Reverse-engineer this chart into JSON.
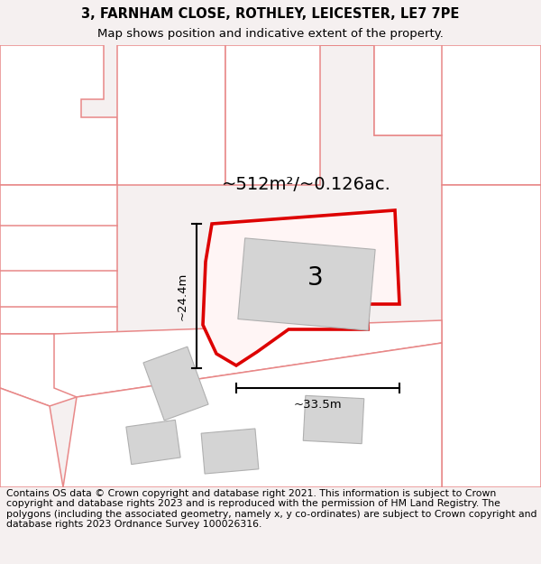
{
  "title_line1": "3, FARNHAM CLOSE, ROTHLEY, LEICESTER, LE7 7PE",
  "title_line2": "Map shows position and indicative extent of the property.",
  "footer_text": "Contains OS data © Crown copyright and database right 2021. This information is subject to Crown copyright and database rights 2023 and is reproduced with the permission of HM Land Registry. The polygons (including the associated geometry, namely x, y co-ordinates) are subject to Crown copyright and database rights 2023 Ordnance Survey 100026316.",
  "area_label": "~512m²/~0.126ac.",
  "number_label": "3",
  "dim_h": "~24.4m",
  "dim_w": "~33.5m",
  "bg_color": "#f5f0f0",
  "map_bg": "#ffffff",
  "property_edge_color": "#dd0000",
  "property_fill": "#ffffff",
  "building_fill": "#d4d4d4",
  "building_edge": "#b0b0b0",
  "neighbor_color": "#e88888",
  "neighbor_fill": "#ffffff",
  "title_fontsize": 10.5,
  "subtitle_fontsize": 9.5,
  "footer_fontsize": 7.8,
  "area_fontsize": 14,
  "number_fontsize": 20,
  "dim_fontsize": 9.5
}
